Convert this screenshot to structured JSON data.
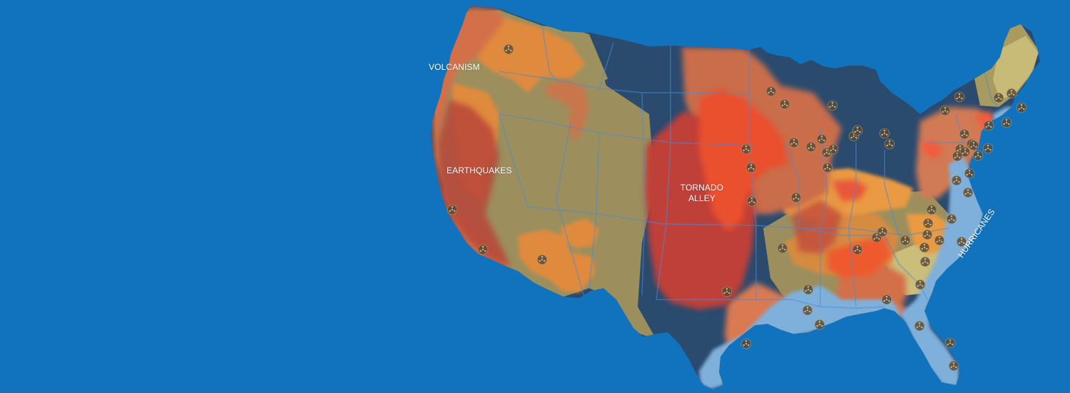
{
  "map": {
    "background_color": "#1173bd",
    "land_base_color": "#2a4a6e",
    "state_line_color": "#4c89d6",
    "icon_name": "radiation-icon",
    "zone_colors": {
      "khaki": "#9c8f5d",
      "orange": "#e08a3c",
      "coral": "#d26c4a",
      "red": "#bf3f37",
      "bright_red": "#ea4f2f",
      "hurricane_blue": "#7fb0db",
      "pale_yellow": "#d3c57f"
    }
  },
  "labels": {
    "volcanism": "VOLCANISM",
    "earthquakes": "EARTHQUAKES",
    "tornado_alley_line1": "TORNADO",
    "tornado_alley_line2": "ALLEY",
    "hurricanes": "HURRICANES"
  },
  "plant_count": 62
}
